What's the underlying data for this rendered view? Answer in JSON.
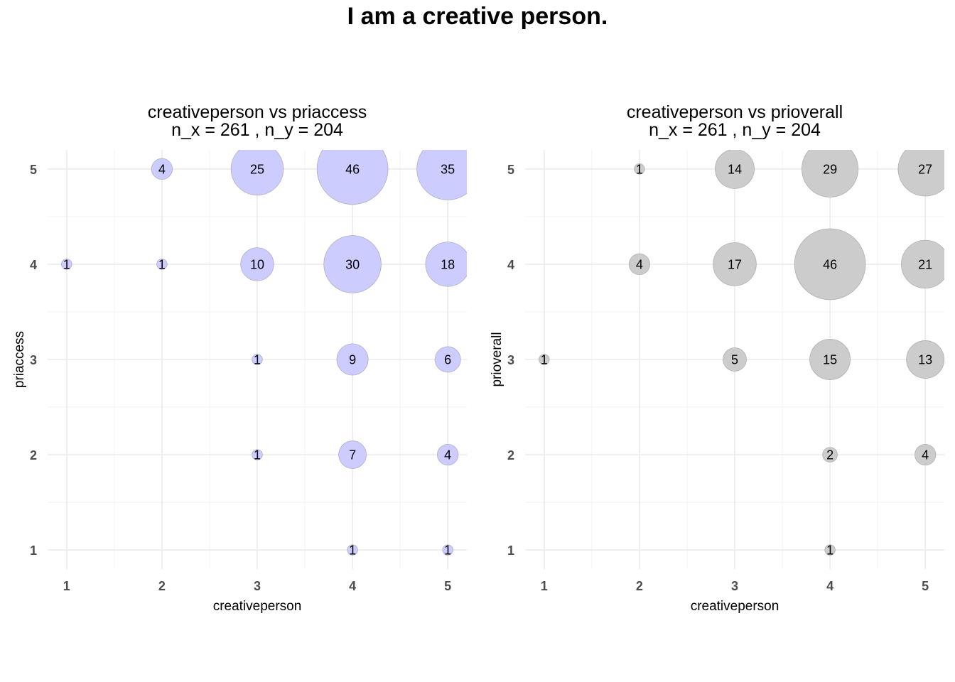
{
  "title": "I am a creative person.",
  "colors": {
    "left_bubble": "#ccccff",
    "right_bubble": "#cccccc",
    "grid": "#ebebeb"
  },
  "chart_data": [
    {
      "type": "scatter",
      "title": "creativeperson vs priaccess",
      "subtitle": "n_x = 261 , n_y = 204",
      "xlabel": "creativeperson",
      "ylabel": "priaccess",
      "xticks": [
        "1",
        "2",
        "3",
        "4",
        "5"
      ],
      "yticks": [
        "1",
        "2",
        "3",
        "4",
        "5"
      ],
      "xlim": [
        0.8,
        5.2
      ],
      "ylim": [
        0.8,
        5.2
      ],
      "bubble_color": "#ccccff",
      "points": [
        {
          "x": 2,
          "y": 5,
          "count": 4,
          "label": "4"
        },
        {
          "x": 3,
          "y": 5,
          "count": 25,
          "label": "25"
        },
        {
          "x": 4,
          "y": 5,
          "count": 46,
          "label": "46"
        },
        {
          "x": 5,
          "y": 5,
          "count": 35,
          "label": "35"
        },
        {
          "x": 1,
          "y": 4,
          "count": 1,
          "label": "1"
        },
        {
          "x": 2,
          "y": 4,
          "count": 1,
          "label": "1"
        },
        {
          "x": 3,
          "y": 4,
          "count": 10,
          "label": "10"
        },
        {
          "x": 4,
          "y": 4,
          "count": 30,
          "label": "30"
        },
        {
          "x": 5,
          "y": 4,
          "count": 18,
          "label": "18"
        },
        {
          "x": 3,
          "y": 3,
          "count": 1,
          "label": "1"
        },
        {
          "x": 4,
          "y": 3,
          "count": 9,
          "label": "9"
        },
        {
          "x": 5,
          "y": 3,
          "count": 6,
          "label": "6"
        },
        {
          "x": 3,
          "y": 2,
          "count": 1,
          "label": "1"
        },
        {
          "x": 4,
          "y": 2,
          "count": 7,
          "label": "7"
        },
        {
          "x": 5,
          "y": 2,
          "count": 4,
          "label": "4"
        },
        {
          "x": 4,
          "y": 1,
          "count": 1,
          "label": "1"
        },
        {
          "x": 5,
          "y": 1,
          "count": 1,
          "label": "1"
        }
      ]
    },
    {
      "type": "scatter",
      "title": "creativeperson vs prioverall",
      "subtitle": "n_x = 261 , n_y = 204",
      "xlabel": "creativeperson",
      "ylabel": "prioverall",
      "xticks": [
        "1",
        "2",
        "3",
        "4",
        "5"
      ],
      "yticks": [
        "1",
        "2",
        "3",
        "4",
        "5"
      ],
      "xlim": [
        0.8,
        5.2
      ],
      "ylim": [
        0.8,
        5.2
      ],
      "bubble_color": "#cccccc",
      "points": [
        {
          "x": 2,
          "y": 5,
          "count": 1,
          "label": "1"
        },
        {
          "x": 3,
          "y": 5,
          "count": 14,
          "label": "14"
        },
        {
          "x": 4,
          "y": 5,
          "count": 29,
          "label": "29"
        },
        {
          "x": 5,
          "y": 5,
          "count": 27,
          "label": "27"
        },
        {
          "x": 2,
          "y": 4,
          "count": 4,
          "label": "4"
        },
        {
          "x": 3,
          "y": 4,
          "count": 17,
          "label": "17"
        },
        {
          "x": 4,
          "y": 4,
          "count": 46,
          "label": "46"
        },
        {
          "x": 5,
          "y": 4,
          "count": 21,
          "label": "21"
        },
        {
          "x": 1,
          "y": 3,
          "count": 1,
          "label": "1"
        },
        {
          "x": 3,
          "y": 3,
          "count": 5,
          "label": "5"
        },
        {
          "x": 4,
          "y": 3,
          "count": 15,
          "label": "15"
        },
        {
          "x": 5,
          "y": 3,
          "count": 13,
          "label": "13"
        },
        {
          "x": 4,
          "y": 2,
          "count": 2,
          "label": "2"
        },
        {
          "x": 5,
          "y": 2,
          "count": 4,
          "label": "4"
        },
        {
          "x": 4,
          "y": 1,
          "count": 1,
          "label": "1"
        }
      ]
    }
  ]
}
